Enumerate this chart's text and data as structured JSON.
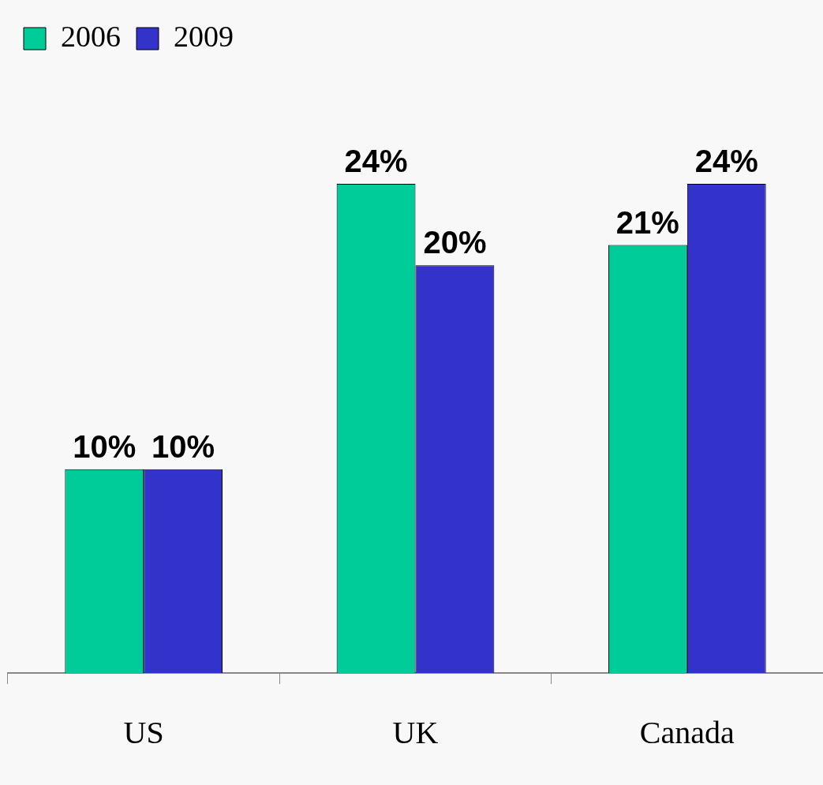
{
  "chart_data": {
    "type": "bar",
    "categories": [
      "US",
      "UK",
      "Canada"
    ],
    "series": [
      {
        "name": "2006",
        "color": "#00cc99",
        "values": [
          10,
          24,
          21
        ],
        "value_labels": [
          "10%",
          "24%",
          "21%"
        ]
      },
      {
        "name": "2009",
        "color": "#3333cc",
        "values": [
          10,
          20,
          24
        ],
        "value_labels": [
          "10%",
          "20%",
          "24%"
        ]
      }
    ],
    "legend": "top left",
    "grid": false,
    "tick_labels": "x"
  }
}
